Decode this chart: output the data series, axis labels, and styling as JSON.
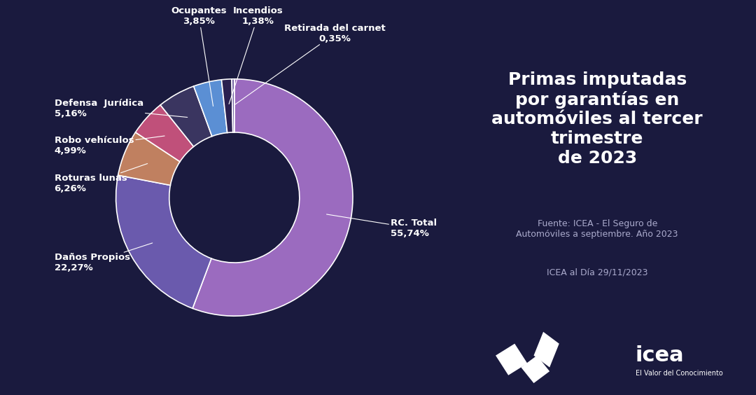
{
  "title": "Primas imputadas\npor garantías en\nautomóviles al tercer\ntrimestre\nde 2023",
  "source_line1": "Fuente: ICEA - El Seguro de",
  "source_line2": "Automóviles a septiembre. Año 2023",
  "source_line3": "ICEA al Día 29/11/2023",
  "background_color": "#1a1a3e",
  "segments": [
    {
      "label": "RC. Total",
      "value": 55.74,
      "color": "#9b6bbf",
      "pct": "55,74%"
    },
    {
      "label": "Daños Propios",
      "value": 22.27,
      "color": "#6a5aad",
      "pct": "22,27%"
    },
    {
      "label": "Roturas lunas",
      "value": 6.26,
      "color": "#c08060",
      "pct": "6,26%"
    },
    {
      "label": "Robo vehículos",
      "value": 4.99,
      "color": "#c0507a",
      "pct": "4,99%"
    },
    {
      "label": "Defensa  Jurídica",
      "value": 5.16,
      "color": "#3a3560",
      "pct": "5,16%"
    },
    {
      "label": "Ocupantes",
      "value": 3.85,
      "color": "#5b8fd4",
      "pct": "3,85%"
    },
    {
      "label": "Incendios",
      "value": 1.38,
      "color": "#2a2050",
      "pct": "1,38%"
    },
    {
      "label": "Retirada del carnet",
      "value": 0.35,
      "color": "#7060a0",
      "pct": "0,35%"
    }
  ],
  "text_color": "#ffffff",
  "label_fontsize": 9.5,
  "title_fontsize": 18,
  "source_fontsize": 9
}
